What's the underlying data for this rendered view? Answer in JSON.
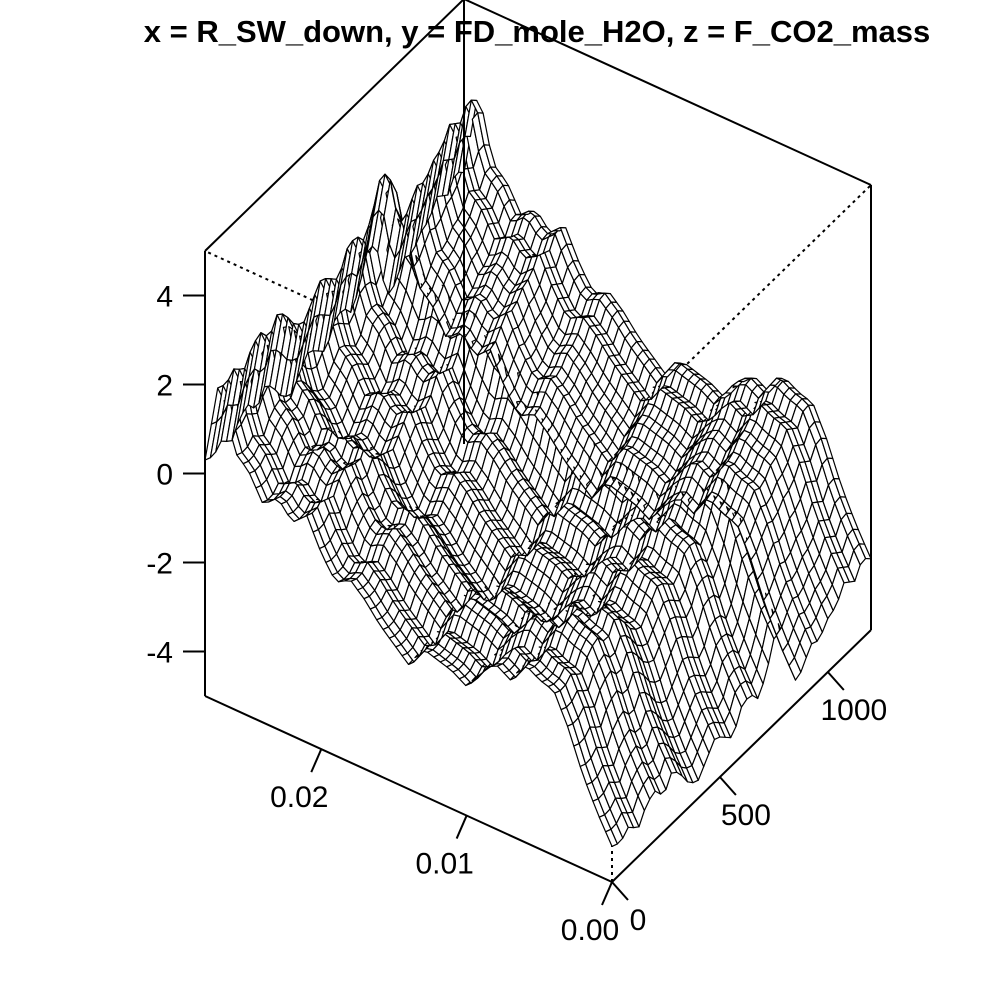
{
  "chart_data": {
    "type": "surface",
    "title": "x = R_SW_down, y = FD_mole_H2O, z = F_CO2_mass",
    "x_tick_labels": [
      "0.00",
      "0.01",
      "0.02"
    ],
    "x_ticks": [
      0.0,
      0.01,
      0.02
    ],
    "y_tick_labels": [
      "0",
      "500",
      "1000"
    ],
    "y_ticks": [
      0,
      500,
      1000
    ],
    "z_tick_labels": [
      "-4",
      "-2",
      "0",
      "2",
      "4"
    ],
    "z_ticks": [
      -4,
      -2,
      0,
      2,
      4
    ],
    "xlim": [
      0.0,
      0.028
    ],
    "ylim": [
      0,
      1200
    ],
    "zlim": [
      -5,
      5
    ],
    "grid": false,
    "surface_profile_along_x": {
      "x": [
        0.0,
        0.001,
        0.002,
        0.003,
        0.004,
        0.005,
        0.006,
        0.007,
        0.008,
        0.009,
        0.01,
        0.011,
        0.012,
        0.013,
        0.014,
        0.015,
        0.016,
        0.017,
        0.018,
        0.019,
        0.02,
        0.021,
        0.022,
        0.023,
        0.024,
        0.025,
        0.026,
        0.027,
        0.028
      ],
      "z": [
        -4.2,
        -3.6,
        -2.9,
        -2.0,
        -1.3,
        -1.2,
        -1.0,
        -1.5,
        -1.3,
        -1.6,
        -2.1,
        -1.9,
        -1.8,
        -1.7,
        -2.2,
        -1.9,
        -1.6,
        -1.2,
        -0.9,
        -1.1,
        -0.6,
        0.1,
        -0.2,
        0.2,
        -0.1,
        0.5,
        0.8,
        2.3,
        0.3
      ]
    },
    "surface_profile_along_y": {
      "y": [
        0,
        40,
        80,
        120,
        160,
        200,
        240,
        280,
        320,
        360,
        400,
        440,
        480,
        520,
        560,
        600,
        640,
        680,
        720,
        760,
        800,
        840,
        880,
        920,
        960,
        1000,
        1040,
        1080,
        1120,
        1160,
        1200
      ],
      "z": [
        0.0,
        -0.1,
        0.1,
        -0.2,
        0.2,
        0.3,
        0.0,
        0.4,
        0.1,
        -0.3,
        -0.4,
        -0.1,
        0.2,
        0.0,
        -0.2,
        0.3,
        0.4,
        0.1,
        0.6,
        1.3,
        0.9,
        -0.3,
        -0.2,
        0.2,
        0.1,
        0.4,
        0.5,
        0.9,
        0.6,
        1.0,
        0.8
      ]
    }
  }
}
